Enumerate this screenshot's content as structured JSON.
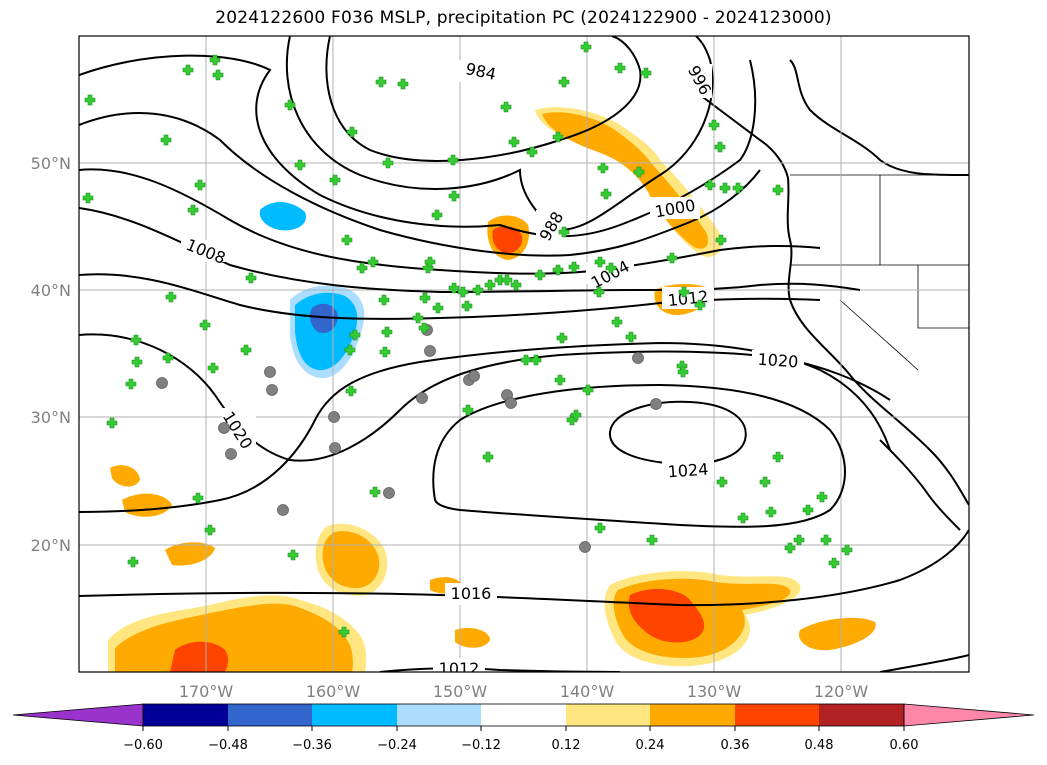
{
  "title": "2024122600 F036 MSLP, precipitation PC (2024122900 - 2024123000)",
  "map": {
    "lat_labels": [
      "50°N",
      "40°N",
      "30°N",
      "20°N"
    ],
    "lon_labels": [
      "170°W",
      "160°W",
      "150°W",
      "140°W",
      "130°W",
      "120°W"
    ],
    "isobar_labels": [
      "984",
      "996",
      "988",
      "1000",
      "1004",
      "1008",
      "1012",
      "1020",
      "1020",
      "1024",
      "1016",
      "1012"
    ],
    "grid": true,
    "colors": {
      "isobar": "#000000",
      "marker_plus": "#33cc33",
      "marker_circle": "#808080",
      "grid": "#b0b0b0"
    }
  },
  "colorbar": {
    "ticks": [
      "−0.60",
      "−0.48",
      "−0.36",
      "−0.24",
      "−0.12",
      "0.12",
      "0.24",
      "0.36",
      "0.48",
      "0.60"
    ],
    "colors": [
      "#9933cc",
      "#000099",
      "#3366cc",
      "#00bbff",
      "#aaddff",
      "#ffffff",
      "#ffe680",
      "#ffaa00",
      "#ff4400",
      "#b22222",
      "#ff88aa"
    ]
  }
}
